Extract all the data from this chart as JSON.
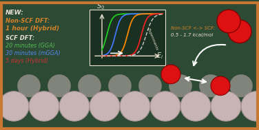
{
  "bg_color": "#2d4a35",
  "border_color": "#c87832",
  "border_width": 3,
  "plot_bg": "#1a3020",
  "al_sphere_color": "#c8b4b4",
  "al_sphere_edge": "#a09090",
  "o2_color": "#dd1111",
  "o2_edge": "#880000",
  "text_new": "NEW:",
  "text_nonscf": "Non-SCF DFT:",
  "text_1hour": "1 hour (Hybrid)",
  "text_scf": "SCF DFT:",
  "text_gga": "20 minutes (GGA)",
  "text_mgga": "30 minutes (mGGA)",
  "text_hybrid": "5 days (Hybrid)",
  "text_nonscf_scf": "Non-SCF <-> SCF:",
  "text_kcal": "0.5 - 1.7 kcal/mol",
  "green_line_color": "#22cc22",
  "blue_line_color": "#4477ff",
  "orange_line_color": "#ff8800",
  "red_line_color": "#ee2222",
  "exp_line_color": "#cccccc",
  "chalk_white": "#e8e0d0",
  "chalk_orange": "#d4822a",
  "chalk_green": "#55bb55",
  "chalk_blue": "#5588ee",
  "chalk_red": "#cc3333"
}
